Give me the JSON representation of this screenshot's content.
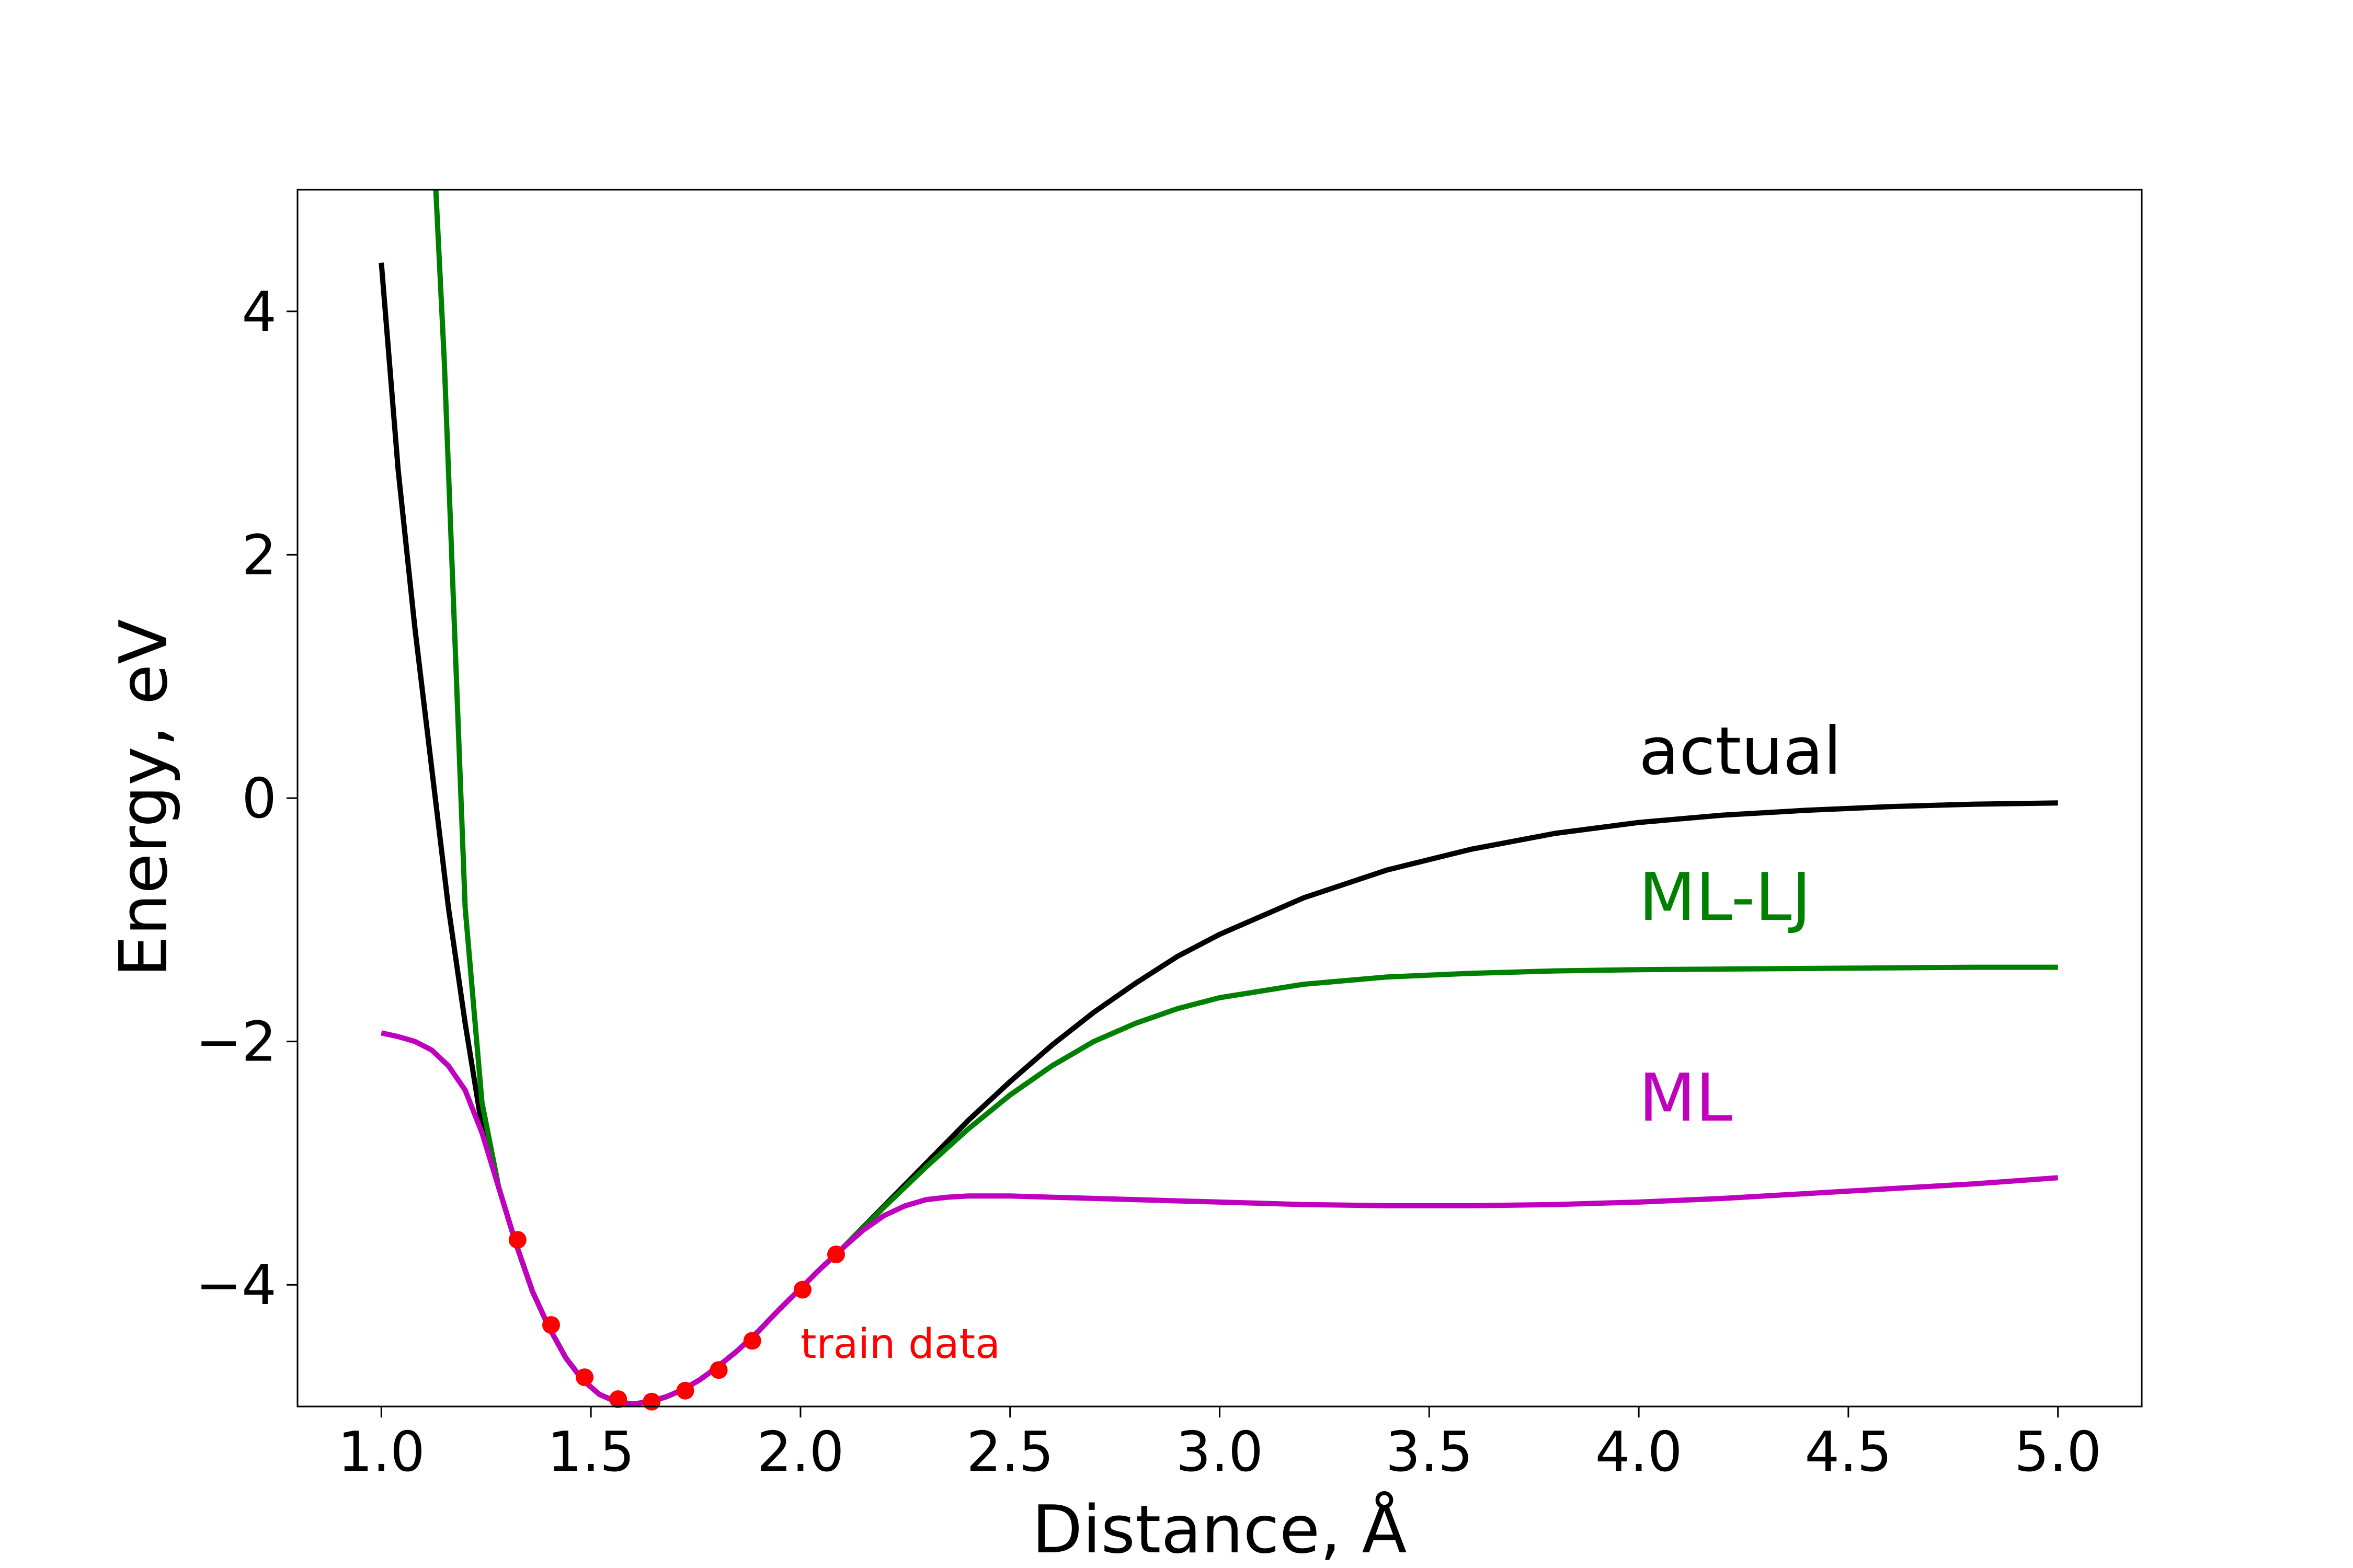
{
  "chart_data": {
    "type": "line",
    "xlabel": "Distance, Å",
    "ylabel": "Energy, eV",
    "xlim": [
      0.8,
      5.2
    ],
    "ylim": [
      -5.0,
      5.0
    ],
    "xticks": [
      1.0,
      1.5,
      2.0,
      2.5,
      3.0,
      3.5,
      4.0,
      4.5,
      5.0
    ],
    "xtick_labels": [
      "1.0",
      "1.5",
      "2.0",
      "2.5",
      "3.0",
      "3.5",
      "4.0",
      "4.5",
      "5.0"
    ],
    "yticks": [
      -4,
      -2,
      0,
      2,
      4
    ],
    "ytick_labels": [
      "−4",
      "−2",
      "0",
      "2",
      "4"
    ],
    "grid": false,
    "series": [
      {
        "name": "actual",
        "color": "#000000",
        "x": [
          1.0,
          1.04,
          1.08,
          1.12,
          1.16,
          1.2,
          1.24,
          1.28,
          1.32,
          1.36,
          1.4,
          1.44,
          1.48,
          1.52,
          1.56,
          1.6,
          1.64,
          1.68,
          1.72,
          1.76,
          1.8,
          1.85,
          1.9,
          1.95,
          2.0,
          2.05,
          2.1,
          2.2,
          2.3,
          2.4,
          2.5,
          2.6,
          2.7,
          2.8,
          2.9,
          3.0,
          3.2,
          3.4,
          3.6,
          3.8,
          4.0,
          4.2,
          4.4,
          4.6,
          4.8,
          5.0
        ],
        "y": [
          4.4,
          2.7,
          1.4,
          0.25,
          -0.9,
          -1.85,
          -2.7,
          -3.2,
          -3.65,
          -4.05,
          -4.35,
          -4.6,
          -4.78,
          -4.9,
          -4.96,
          -4.98,
          -4.96,
          -4.92,
          -4.86,
          -4.78,
          -4.68,
          -4.54,
          -4.38,
          -4.2,
          -4.03,
          -3.86,
          -3.7,
          -3.35,
          -3.0,
          -2.65,
          -2.33,
          -2.03,
          -1.76,
          -1.52,
          -1.3,
          -1.12,
          -0.82,
          -0.59,
          -0.42,
          -0.29,
          -0.2,
          -0.14,
          -0.1,
          -0.07,
          -0.05,
          -0.04
        ]
      },
      {
        "name": "ML-LJ",
        "color": "#008000",
        "x": [
          1.13,
          1.15,
          1.17,
          1.2,
          1.24,
          1.28,
          1.32,
          1.36,
          1.4,
          1.44,
          1.48,
          1.52,
          1.56,
          1.6,
          1.64,
          1.68,
          1.72,
          1.76,
          1.8,
          1.85,
          1.9,
          1.95,
          2.0,
          2.05,
          2.1,
          2.2,
          2.3,
          2.4,
          2.5,
          2.6,
          2.7,
          2.8,
          2.9,
          3.0,
          3.2,
          3.4,
          3.6,
          3.8,
          4.0,
          4.2,
          4.4,
          4.6,
          4.8,
          5.0
        ],
        "y": [
          5.0,
          3.6,
          1.8,
          -0.9,
          -2.5,
          -3.2,
          -3.65,
          -4.05,
          -4.35,
          -4.6,
          -4.78,
          -4.9,
          -4.96,
          -4.98,
          -4.96,
          -4.92,
          -4.86,
          -4.78,
          -4.68,
          -4.54,
          -4.38,
          -4.2,
          -4.03,
          -3.86,
          -3.7,
          -3.36,
          -3.03,
          -2.72,
          -2.44,
          -2.2,
          -2.0,
          -1.85,
          -1.73,
          -1.64,
          -1.53,
          -1.47,
          -1.44,
          -1.42,
          -1.41,
          -1.405,
          -1.4,
          -1.395,
          -1.39,
          -1.39
        ]
      },
      {
        "name": "ML",
        "color": "#bf00bf",
        "x": [
          1.0,
          1.04,
          1.08,
          1.12,
          1.16,
          1.2,
          1.24,
          1.28,
          1.32,
          1.36,
          1.4,
          1.44,
          1.48,
          1.52,
          1.56,
          1.6,
          1.64,
          1.68,
          1.72,
          1.76,
          1.8,
          1.85,
          1.9,
          1.95,
          2.0,
          2.05,
          2.1,
          2.15,
          2.2,
          2.25,
          2.3,
          2.35,
          2.4,
          2.5,
          2.6,
          2.8,
          3.0,
          3.2,
          3.4,
          3.6,
          3.8,
          4.0,
          4.2,
          4.4,
          4.6,
          4.8,
          5.0
        ],
        "y": [
          -1.93,
          -1.96,
          -2.0,
          -2.07,
          -2.2,
          -2.4,
          -2.75,
          -3.2,
          -3.65,
          -4.05,
          -4.35,
          -4.6,
          -4.78,
          -4.9,
          -4.96,
          -4.98,
          -4.96,
          -4.92,
          -4.86,
          -4.78,
          -4.68,
          -4.54,
          -4.38,
          -4.2,
          -4.03,
          -3.86,
          -3.7,
          -3.55,
          -3.43,
          -3.35,
          -3.3,
          -3.28,
          -3.27,
          -3.27,
          -3.28,
          -3.3,
          -3.32,
          -3.34,
          -3.35,
          -3.35,
          -3.34,
          -3.32,
          -3.29,
          -3.25,
          -3.21,
          -3.17,
          -3.12
        ]
      }
    ],
    "train_data": {
      "name": "train data",
      "color": "#ff0000",
      "x": [
        1.325,
        1.405,
        1.485,
        1.565,
        1.645,
        1.725,
        1.805,
        1.885,
        2.005,
        2.085
      ],
      "y": [
        -3.63,
        -4.33,
        -4.76,
        -4.94,
        -4.96,
        -4.87,
        -4.7,
        -4.46,
        -4.04,
        -3.75
      ]
    },
    "annotations": [
      {
        "text": "actual",
        "color": "#000000",
        "x": 4.0,
        "y": 0.2
      },
      {
        "text": "ML-LJ",
        "color": "#008000",
        "x": 4.0,
        "y": -1.0
      },
      {
        "text": "ML",
        "color": "#bf00bf",
        "x": 4.0,
        "y": -2.65
      },
      {
        "text": "train data",
        "color": "#ff0000",
        "x": 2.0,
        "y": -4.6
      }
    ]
  }
}
